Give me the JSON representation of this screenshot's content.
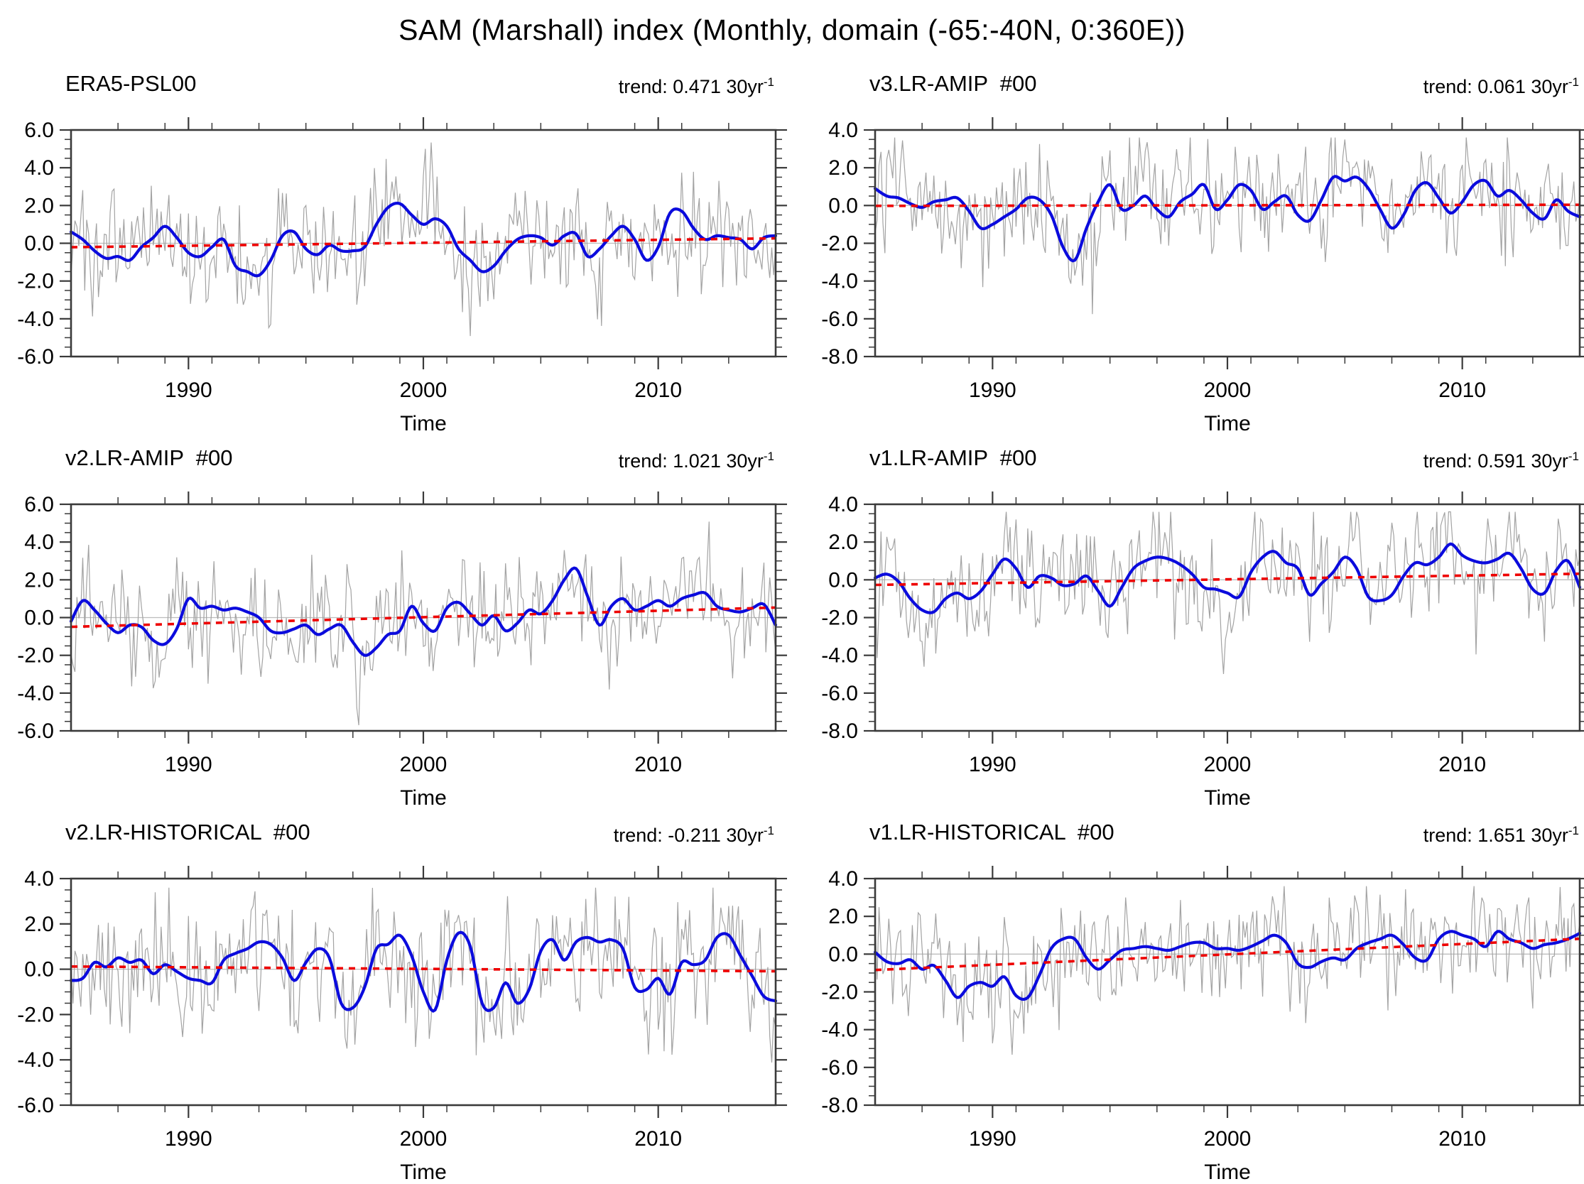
{
  "figure": {
    "title": "SAM (Marshall) index (Monthly, domain (-65:-40N, 0:360E))",
    "xlabel": "Time",
    "colors": {
      "monthly_line": "#a3a3a3",
      "smoothed_line": "#0b0bdd",
      "trend_line": "#ee0000",
      "zero_line": "#bdbdbd",
      "frame": "#3a3a3a"
    }
  },
  "chart_data": [
    {
      "type": "line",
      "panel": "top-left",
      "title": "ERA5-PSL00",
      "trend_label": "trend: 0.471 30yr",
      "trend_sup": "-1",
      "trend_per_30yr": 0.471,
      "x_range": [
        1985,
        2015
      ],
      "xticks": [
        1990,
        2000,
        2010
      ],
      "x_minor_step": 2,
      "xlabel": "Time",
      "ylim": [
        -6,
        6
      ],
      "yticks": [
        "6.0",
        "4.0",
        "2.0",
        "0.0",
        "-2.0",
        "-4.0",
        "-6.0"
      ],
      "legend": "off",
      "grid": "off",
      "series_names": [
        "monthly",
        "smoothed",
        "trend"
      ],
      "smoothed": {
        "x_start": 1985,
        "x_step": 0.5,
        "values": [
          0.6,
          0.2,
          -0.4,
          -0.8,
          -0.7,
          -0.9,
          -0.2,
          0.3,
          0.9,
          0.3,
          -0.5,
          -0.7,
          -0.2,
          0.2,
          -1.2,
          -1.5,
          -1.7,
          -0.9,
          0.4,
          0.6,
          -0.3,
          -0.6,
          -0.1,
          -0.4,
          -0.4,
          -0.2,
          1.0,
          1.9,
          2.1,
          1.5,
          1.0,
          1.3,
          0.9,
          -0.3,
          -0.9,
          -1.5,
          -1.2,
          -0.4,
          0.2,
          0.4,
          0.3,
          -0.1,
          0.4,
          0.5,
          -0.7,
          -0.3,
          0.4,
          0.9,
          0.2,
          -0.9,
          -0.2,
          1.6,
          1.7,
          0.8,
          0.2,
          0.4,
          0.3,
          0.2,
          -0.3,
          0.3,
          0.4
        ]
      },
      "trend_line": {
        "x": [
          1985,
          2015
        ],
        "y": [
          -0.21,
          0.26
        ]
      },
      "monthly_noise": {
        "seed": 101,
        "sigma": 1.55,
        "ar": 0.15
      }
    },
    {
      "type": "line",
      "panel": "top-right",
      "title": "v3.LR-AMIP  #00",
      "trend_label": "trend: 0.061 30yr",
      "trend_sup": "-1",
      "trend_per_30yr": 0.061,
      "x_range": [
        1985,
        2015
      ],
      "xticks": [
        1990,
        2000,
        2010
      ],
      "x_minor_step": 2,
      "xlabel": "Time",
      "ylim": [
        -8,
        4
      ],
      "yticks": [
        "4.0",
        "2.0",
        "0.0",
        "-2.0",
        "-4.0",
        "-6.0",
        "-8.0"
      ],
      "legend": "off",
      "grid": "off",
      "series_names": [
        "monthly",
        "smoothed",
        "trend"
      ],
      "smoothed": {
        "x_start": 1985,
        "x_step": 0.5,
        "values": [
          0.9,
          0.5,
          0.4,
          0.1,
          -0.1,
          0.2,
          0.3,
          0.4,
          -0.3,
          -1.2,
          -1.0,
          -0.6,
          -0.2,
          0.4,
          0.3,
          -0.5,
          -2.2,
          -2.9,
          -1.2,
          0.2,
          1.1,
          -0.2,
          0.0,
          0.5,
          -0.2,
          -0.6,
          0.2,
          0.6,
          1.1,
          -0.2,
          0.3,
          1.1,
          0.8,
          -0.2,
          0.2,
          0.5,
          -0.5,
          -0.8,
          0.3,
          1.5,
          1.3,
          1.5,
          0.9,
          -0.2,
          -1.2,
          -0.5,
          0.8,
          1.2,
          0.4,
          -0.4,
          0.2,
          1.1,
          1.3,
          0.5,
          0.8,
          0.3,
          -0.4,
          -0.7,
          0.3,
          -0.3,
          -0.6
        ]
      },
      "trend_line": {
        "x": [
          1985,
          2015
        ],
        "y": [
          -0.02,
          0.04
        ]
      },
      "monthly_noise": {
        "seed": 102,
        "sigma": 1.5,
        "ar": 0.15
      }
    },
    {
      "type": "line",
      "panel": "middle-left",
      "title": "v2.LR-AMIP  #00",
      "trend_label": "trend: 1.021 30yr",
      "trend_sup": "-1",
      "trend_per_30yr": 1.021,
      "x_range": [
        1985,
        2015
      ],
      "xticks": [
        1990,
        2000,
        2010
      ],
      "x_minor_step": 2,
      "xlabel": "Time",
      "ylim": [
        -6,
        6
      ],
      "yticks": [
        "6.0",
        "4.0",
        "2.0",
        "0.0",
        "-2.0",
        "-4.0",
        "-6.0"
      ],
      "legend": "off",
      "grid": "off",
      "series_names": [
        "monthly",
        "smoothed",
        "trend"
      ],
      "smoothed": {
        "x_start": 1985,
        "x_step": 0.5,
        "values": [
          -0.2,
          0.9,
          0.4,
          -0.3,
          -0.8,
          -0.4,
          -0.5,
          -1.2,
          -1.4,
          -0.6,
          1.0,
          0.5,
          0.6,
          0.4,
          0.5,
          0.3,
          0.0,
          -0.7,
          -0.8,
          -0.6,
          -0.4,
          -0.9,
          -0.6,
          -0.4,
          -1.3,
          -2.0,
          -1.6,
          -0.9,
          -0.7,
          0.6,
          -0.3,
          -0.7,
          0.5,
          0.8,
          0.2,
          -0.4,
          0.1,
          -0.7,
          -0.3,
          0.4,
          0.2,
          0.9,
          2.0,
          2.6,
          1.1,
          -0.4,
          0.6,
          1.0,
          0.4,
          0.6,
          0.9,
          0.6,
          1.0,
          1.2,
          1.3,
          0.6,
          0.4,
          0.3,
          0.5,
          0.7,
          -0.4
        ]
      },
      "trend_line": {
        "x": [
          1985,
          2015
        ],
        "y": [
          -0.49,
          0.53
        ]
      },
      "monthly_noise": {
        "seed": 103,
        "sigma": 1.55,
        "ar": 0.15
      }
    },
    {
      "type": "line",
      "panel": "middle-right",
      "title": "v1.LR-AMIP  #00",
      "trend_label": "trend: 0.591 30yr",
      "trend_sup": "-1",
      "trend_per_30yr": 0.591,
      "x_range": [
        1985,
        2015
      ],
      "xticks": [
        1990,
        2000,
        2010
      ],
      "x_minor_step": 2,
      "xlabel": "Time",
      "ylim": [
        -8,
        4
      ],
      "yticks": [
        "4.0",
        "2.0",
        "0.0",
        "-2.0",
        "-4.0",
        "-6.0",
        "-8.0"
      ],
      "legend": "off",
      "grid": "off",
      "series_names": [
        "monthly",
        "smoothed",
        "trend"
      ],
      "smoothed": {
        "x_start": 1985,
        "x_step": 0.5,
        "values": [
          0.1,
          0.3,
          -0.1,
          -1.0,
          -1.6,
          -1.7,
          -1.0,
          -0.7,
          -1.0,
          -0.6,
          0.3,
          1.1,
          0.6,
          -0.4,
          0.2,
          0.1,
          -0.3,
          -0.2,
          0.2,
          -0.6,
          -1.4,
          -0.4,
          0.6,
          1.0,
          1.2,
          1.1,
          0.8,
          0.3,
          -0.4,
          -0.5,
          -0.7,
          -0.9,
          0.4,
          1.2,
          1.5,
          0.9,
          0.6,
          -0.8,
          -0.2,
          0.4,
          1.2,
          0.6,
          -0.9,
          -1.1,
          -0.8,
          0.2,
          0.9,
          0.8,
          1.2,
          1.9,
          1.3,
          1.0,
          0.9,
          1.1,
          1.4,
          0.6,
          -0.5,
          -0.7,
          0.5,
          1.0,
          -0.4
        ]
      },
      "trend_line": {
        "x": [
          1985,
          2015
        ],
        "y": [
          -0.27,
          0.32
        ]
      },
      "monthly_noise": {
        "seed": 104,
        "sigma": 1.6,
        "ar": 0.15
      }
    },
    {
      "type": "line",
      "panel": "bottom-left",
      "title": "v2.LR-HISTORICAL  #00",
      "trend_label": "trend: -0.211 30yr",
      "trend_sup": "-1",
      "trend_per_30yr": -0.211,
      "x_range": [
        1985,
        2015
      ],
      "xticks": [
        1990,
        2000,
        2010
      ],
      "x_minor_step": 2,
      "xlabel": "Time",
      "ylim": [
        -6,
        4
      ],
      "yticks": [
        "4.0",
        "2.0",
        "0.0",
        "-2.0",
        "-4.0",
        "-6.0"
      ],
      "legend": "off",
      "grid": "off",
      "series_names": [
        "monthly",
        "smoothed",
        "trend"
      ],
      "smoothed": {
        "x_start": 1985,
        "x_step": 0.5,
        "values": [
          -0.5,
          -0.4,
          0.3,
          0.1,
          0.5,
          0.3,
          0.4,
          -0.2,
          0.2,
          -0.1,
          -0.4,
          -0.5,
          -0.6,
          0.4,
          0.7,
          0.9,
          1.2,
          1.1,
          0.5,
          -0.5,
          0.3,
          0.9,
          0.5,
          -1.5,
          -1.7,
          -0.8,
          0.9,
          1.1,
          1.5,
          0.6,
          -1.0,
          -1.8,
          0.4,
          1.6,
          1.0,
          -1.5,
          -1.7,
          -0.6,
          -1.5,
          -0.9,
          0.8,
          1.3,
          0.4,
          1.2,
          1.4,
          1.2,
          1.3,
          0.9,
          -0.8,
          -0.9,
          -0.4,
          -1.1,
          0.3,
          0.2,
          0.4,
          1.4,
          1.5,
          0.6,
          -0.3,
          -1.2,
          -1.4
        ]
      },
      "trend_line": {
        "x": [
          1985,
          2015
        ],
        "y": [
          0.12,
          -0.09
        ]
      },
      "monthly_noise": {
        "seed": 105,
        "sigma": 1.5,
        "ar": 0.15
      }
    },
    {
      "type": "line",
      "panel": "bottom-right",
      "title": "v1.LR-HISTORICAL  #00",
      "trend_label": "trend: 1.651 30yr",
      "trend_sup": "-1",
      "trend_per_30yr": 1.651,
      "x_range": [
        1985,
        2015
      ],
      "xticks": [
        1990,
        2000,
        2010
      ],
      "x_minor_step": 2,
      "xlabel": "Time",
      "ylim": [
        -8,
        4
      ],
      "yticks": [
        "4.0",
        "2.0",
        "0.0",
        "-2.0",
        "-4.0",
        "-6.0",
        "-8.0"
      ],
      "legend": "off",
      "grid": "off",
      "series_names": [
        "monthly",
        "smoothed",
        "trend"
      ],
      "smoothed": {
        "x_start": 1985,
        "x_step": 0.5,
        "values": [
          0.1,
          -0.4,
          -0.5,
          -0.3,
          -0.8,
          -0.6,
          -1.4,
          -2.3,
          -1.7,
          -1.5,
          -1.7,
          -1.2,
          -2.2,
          -2.3,
          -1.1,
          0.3,
          0.8,
          0.8,
          -0.2,
          -0.8,
          -0.3,
          0.2,
          0.3,
          0.4,
          0.3,
          0.2,
          0.4,
          0.6,
          0.6,
          0.3,
          0.3,
          0.2,
          0.4,
          0.7,
          1.0,
          0.6,
          -0.5,
          -0.7,
          -0.4,
          -0.2,
          -0.3,
          0.3,
          0.6,
          0.8,
          1.0,
          0.5,
          -0.2,
          -0.3,
          0.8,
          1.2,
          1.0,
          0.8,
          0.4,
          1.2,
          0.8,
          0.6,
          0.3,
          0.5,
          0.6,
          0.8,
          1.1
        ]
      },
      "trend_line": {
        "x": [
          1985,
          2015
        ],
        "y": [
          -0.84,
          0.81
        ]
      },
      "monthly_noise": {
        "seed": 106,
        "sigma": 1.45,
        "ar": 0.15
      }
    }
  ]
}
